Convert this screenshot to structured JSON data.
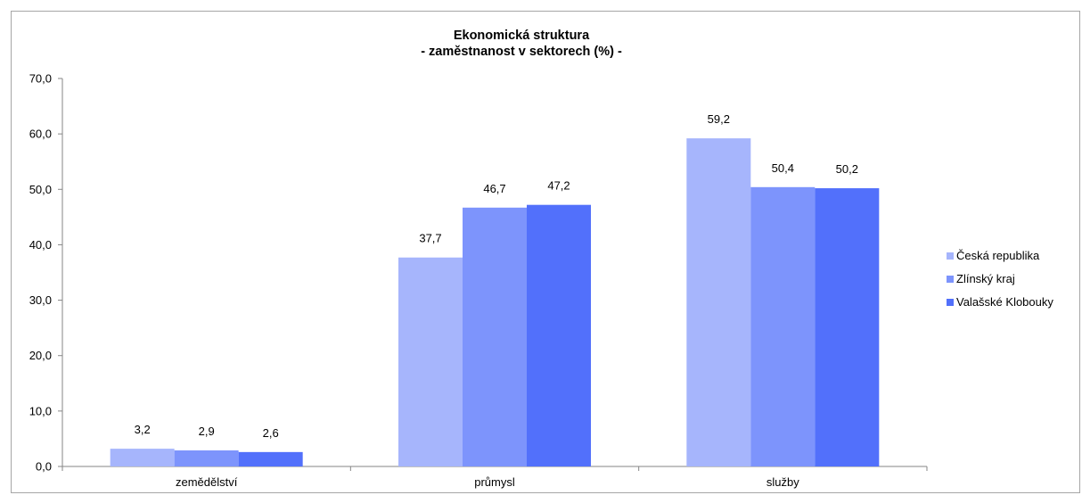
{
  "chart_data": {
    "type": "bar",
    "title": "Ekonomická struktura",
    "subtitle": "- zaměstnanost v sektorech  (%) -",
    "categories": [
      "zemědělství",
      "průmysl",
      "služby"
    ],
    "series": [
      {
        "name": "Česká republika",
        "values": [
          3.2,
          37.7,
          59.2
        ],
        "color": "#a6b5fc"
      },
      {
        "name": "Zlínský kraj",
        "values": [
          2.9,
          46.7,
          50.4
        ],
        "color": "#7d94fc"
      },
      {
        "name": "Valašské Klobouky",
        "values": [
          2.6,
          47.2,
          50.2
        ],
        "color": "#5270fb"
      }
    ],
    "ylim": [
      0,
      70
    ],
    "yticks": [
      "0,0",
      "10,0",
      "20,0",
      "30,0",
      "40,0",
      "50,0",
      "60,0",
      "70,0"
    ],
    "value_labels": [
      [
        "3,2",
        "37,7",
        "59,2"
      ],
      [
        "2,9",
        "46,7",
        "50,4"
      ],
      [
        "2,6",
        "47,2",
        "50,2"
      ]
    ],
    "grid": false,
    "legend_position": "right"
  }
}
